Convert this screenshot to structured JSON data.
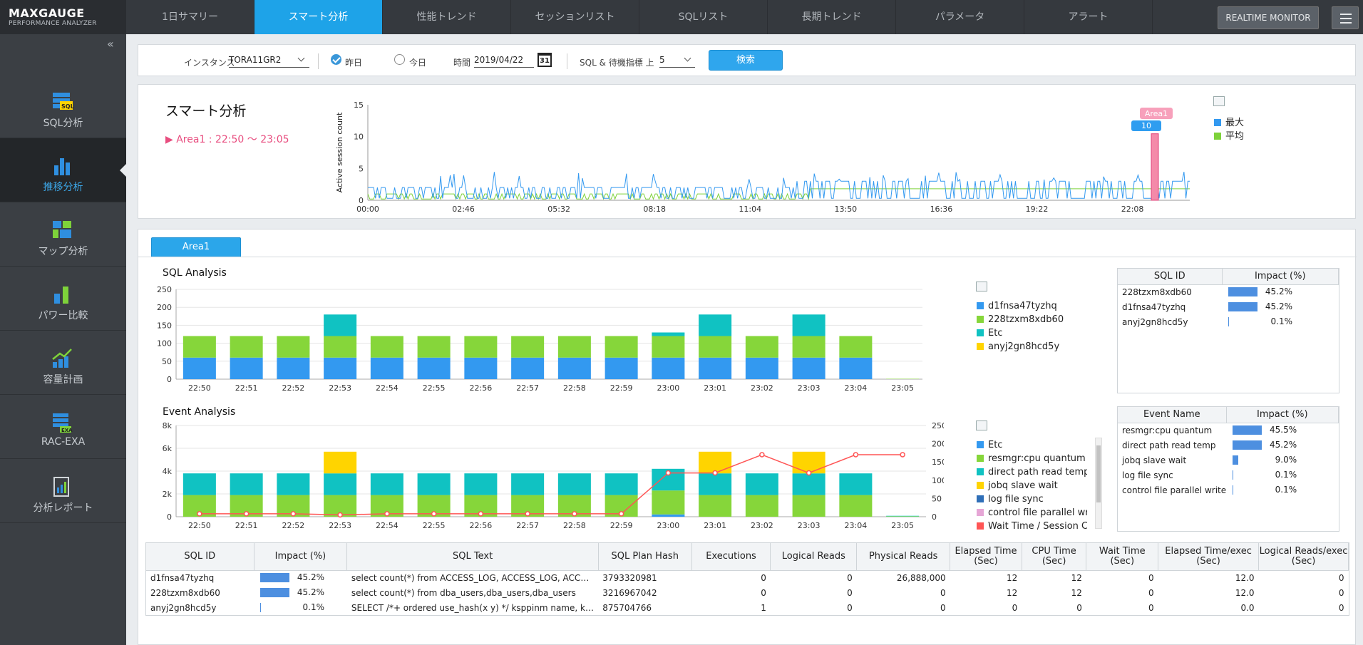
{
  "app": {
    "logo_main": "MAXGAUGE",
    "logo_sub": "PERFORMANCE ANALYZER"
  },
  "tabs": [
    "1日サマリー",
    "スマート分析",
    "性能トレンド",
    "セッションリスト",
    "SQLリスト",
    "長期トレンド",
    "パラメータ",
    "アラート"
  ],
  "active_tab": 1,
  "header": {
    "realtime_label": "REALTIME MONITOR"
  },
  "sidebar": {
    "collapse": "«",
    "items": [
      {
        "label": "SQL分析",
        "icon": "sql-icon"
      },
      {
        "label": "推移分析",
        "icon": "bar-chart-icon"
      },
      {
        "label": "マップ分析",
        "icon": "map-icon"
      },
      {
        "label": "パワー比較",
        "icon": "power-compare-icon"
      },
      {
        "label": "容量計画",
        "icon": "capacity-icon"
      },
      {
        "label": "RAC-EXA",
        "icon": "rac-exa-icon"
      },
      {
        "label": "分析レポート",
        "icon": "report-icon"
      }
    ],
    "active": 1
  },
  "filter": {
    "instance_label": "インスタンス",
    "instance_value": "TORA11GR2",
    "yesterday_label": "昨日",
    "today_label": "今日",
    "time_label": "時間",
    "date_value": "2019/04/22",
    "cal_day": "31",
    "sql_label": "SQL & 待機指標 上",
    "top_value": "5",
    "search_label": "検索"
  },
  "smart": {
    "title": "スマート分析",
    "area_marker": "▶",
    "area_text": "Area1 : 22:50 ～ 23:05",
    "ylabel": "Active session count",
    "area_tag": "Area1",
    "area_value": "10",
    "legend": [
      {
        "name": "最大",
        "color": "#3399f0"
      },
      {
        "name": "平均",
        "color": "#7ed23a"
      }
    ]
  },
  "main": {
    "area_tab": "Area1",
    "sql_title": "SQL Analysis",
    "event_title": "Event Analysis",
    "sql_legend": [
      {
        "name": "d1fnsa47tyzhq",
        "color": "#3399f0"
      },
      {
        "name": "228tzxm8xdb60",
        "color": "#86d63a"
      },
      {
        "name": "Etc",
        "color": "#10c2c2"
      },
      {
        "name": "anyj2gn8hcd5y",
        "color": "#ffd400"
      }
    ],
    "event_legend": [
      {
        "name": "Etc",
        "color": "#3399f0"
      },
      {
        "name": "resmgr:cpu quantum",
        "color": "#86d63a"
      },
      {
        "name": "direct path read temp",
        "color": "#10c2c2"
      },
      {
        "name": "jobq slave wait",
        "color": "#ffd400"
      },
      {
        "name": "log file sync",
        "color": "#2f6fb8"
      },
      {
        "name": "control file parallel write",
        "color": "#e6a6d6"
      },
      {
        "name": "Wait Time / Session Cou",
        "color": "#ff5555"
      }
    ],
    "sql_table": {
      "headers": [
        "SQL ID",
        "Impact (%)"
      ],
      "rows": [
        {
          "id": "228tzxm8xdb60",
          "impact": "45.2%",
          "pct": 45.2
        },
        {
          "id": "d1fnsa47tyzhq",
          "impact": "45.2%",
          "pct": 45.2
        },
        {
          "id": "anyj2gn8hcd5y",
          "impact": "0.1%",
          "pct": 0.1
        }
      ]
    },
    "event_table": {
      "headers": [
        "Event Name",
        "Impact (%)"
      ],
      "rows": [
        {
          "id": "resmgr:cpu quantum",
          "impact": "45.5%",
          "pct": 45.5
        },
        {
          "id": "direct path read temp",
          "impact": "45.2%",
          "pct": 45.2
        },
        {
          "id": "jobq slave wait",
          "impact": "9.0%",
          "pct": 9.0
        },
        {
          "id": "log file sync",
          "impact": "0.1%",
          "pct": 0.1
        },
        {
          "id": "control file parallel write",
          "impact": "0.1%",
          "pct": 0.1
        }
      ]
    },
    "grid": {
      "headers": [
        "SQL ID",
        "Impact (%)",
        "SQL Text",
        "SQL Plan Hash",
        "Executions",
        "Logical Reads",
        "Physical Reads",
        "Elapsed Time (Sec)",
        "CPU Time (Sec)",
        "Wait Time (Sec)",
        "Elapsed Time/exec (Sec)",
        "Logical Reads/exec (Sec)"
      ],
      "rows": [
        {
          "id": "d1fnsa47tyzhq",
          "impact": "45.2%",
          "pct": 45.2,
          "text": "select count(*) from ACCESS_LOG, ACCESS_LOG, ACCESS_LOG",
          "hash": "3793320981",
          "exec": "0",
          "lr": "0",
          "pr": "26,888,000",
          "el": "12",
          "cpu": "12",
          "wait": "0",
          "elx": "12.0",
          "lrx": "0"
        },
        {
          "id": "228tzxm8xdb60",
          "impact": "45.2%",
          "pct": 45.2,
          "text": "select count(*) from dba_users,dba_users,dba_users",
          "hash": "3216967042",
          "exec": "0",
          "lr": "0",
          "pr": "0",
          "el": "12",
          "cpu": "12",
          "wait": "0",
          "elx": "12.0",
          "lrx": "0"
        },
        {
          "id": "anyj2gn8hcd5y",
          "impact": "0.1%",
          "pct": 0.1,
          "text": "SELECT /*+ ordered use_hash(x y) */ ksppinm name, ksppstvl value",
          "hash": "875704766",
          "exec": "1",
          "lr": "0",
          "pr": "0",
          "el": "0",
          "cpu": "0",
          "wait": "0",
          "elx": "0.0",
          "lrx": "0"
        }
      ]
    }
  },
  "chart_data": [
    {
      "type": "line",
      "title": "スマート分析",
      "ylabel": "Active session count",
      "ylim": [
        0,
        15
      ],
      "yticks": [
        "0",
        "5",
        "10",
        "15"
      ],
      "xticks": [
        "00:00",
        "02:46",
        "05:32",
        "08:18",
        "11:04",
        "13:50",
        "16:36",
        "19:22",
        "22:08"
      ],
      "series": [
        {
          "name": "最大",
          "color": "#3399f0",
          "baseline": 1,
          "peak": 3
        },
        {
          "name": "平均",
          "color": "#7ed23a",
          "baseline": 1,
          "peak": 2
        }
      ],
      "highlight": {
        "label": "Area1",
        "value": 10
      }
    },
    {
      "type": "bar",
      "title": "SQL Analysis",
      "categories": [
        "22:50",
        "22:51",
        "22:52",
        "22:53",
        "22:54",
        "22:55",
        "22:56",
        "22:57",
        "22:58",
        "22:59",
        "23:00",
        "23:01",
        "23:02",
        "23:03",
        "23:04",
        "23:05"
      ],
      "ylim": [
        0,
        250
      ],
      "yticks": [
        "0",
        "50",
        "100",
        "150",
        "200",
        "250"
      ],
      "series": [
        {
          "name": "d1fnsa47tyzhq",
          "color": "#3399f0",
          "values": [
            60,
            60,
            60,
            60,
            60,
            60,
            60,
            60,
            60,
            60,
            60,
            60,
            60,
            60,
            60,
            0
          ]
        },
        {
          "name": "228tzxm8xdb60",
          "color": "#86d63a",
          "values": [
            60,
            60,
            60,
            60,
            60,
            60,
            60,
            60,
            60,
            60,
            60,
            60,
            60,
            60,
            60,
            1
          ]
        },
        {
          "name": "Etc",
          "color": "#10c2c2",
          "values": [
            0,
            0,
            0,
            60,
            0,
            0,
            0,
            0,
            0,
            0,
            10,
            60,
            0,
            60,
            0,
            0
          ]
        },
        {
          "name": "anyj2gn8hcd5y",
          "color": "#ffd400",
          "values": [
            0,
            0,
            0,
            0,
            0,
            0,
            0,
            0,
            0,
            0,
            0,
            0,
            0,
            0,
            0,
            0
          ]
        }
      ]
    },
    {
      "type": "bar",
      "title": "Event Analysis",
      "categories": [
        "22:50",
        "22:51",
        "22:52",
        "22:53",
        "22:54",
        "22:55",
        "22:56",
        "22:57",
        "22:58",
        "22:59",
        "23:00",
        "23:01",
        "23:02",
        "23:03",
        "23:04",
        "23:05"
      ],
      "ylim": [
        0,
        8000
      ],
      "yticks": [
        "0",
        "2k",
        "4k",
        "6k",
        "8k"
      ],
      "y2lim": [
        0,
        250
      ],
      "y2ticks": [
        "0",
        "50",
        "100",
        "150",
        "200",
        "250"
      ],
      "series": [
        {
          "name": "Etc",
          "color": "#3399f0",
          "values": [
            0,
            0,
            0,
            0,
            0,
            0,
            0,
            0,
            0,
            0,
            200,
            0,
            0,
            0,
            0,
            0
          ]
        },
        {
          "name": "resmgr:cpu quantum",
          "color": "#86d63a",
          "values": [
            1900,
            1900,
            1900,
            1900,
            1900,
            1900,
            1900,
            1900,
            1900,
            1900,
            2100,
            1900,
            1900,
            1900,
            1900,
            40
          ]
        },
        {
          "name": "direct path read temp",
          "color": "#10c2c2",
          "values": [
            1900,
            1900,
            1900,
            1900,
            1900,
            1900,
            1900,
            1900,
            1900,
            1900,
            1900,
            1900,
            1900,
            1900,
            1900,
            40
          ]
        },
        {
          "name": "jobq slave wait",
          "color": "#ffd400",
          "values": [
            0,
            0,
            0,
            1900,
            0,
            0,
            0,
            0,
            0,
            0,
            0,
            1900,
            0,
            1900,
            0,
            0
          ]
        }
      ],
      "line": {
        "name": "Wait Time / Session Cou",
        "color": "#ff5555",
        "values": [
          8,
          8,
          8,
          5,
          8,
          8,
          8,
          8,
          8,
          8,
          120,
          120,
          170,
          120,
          170,
          170
        ]
      }
    }
  ]
}
